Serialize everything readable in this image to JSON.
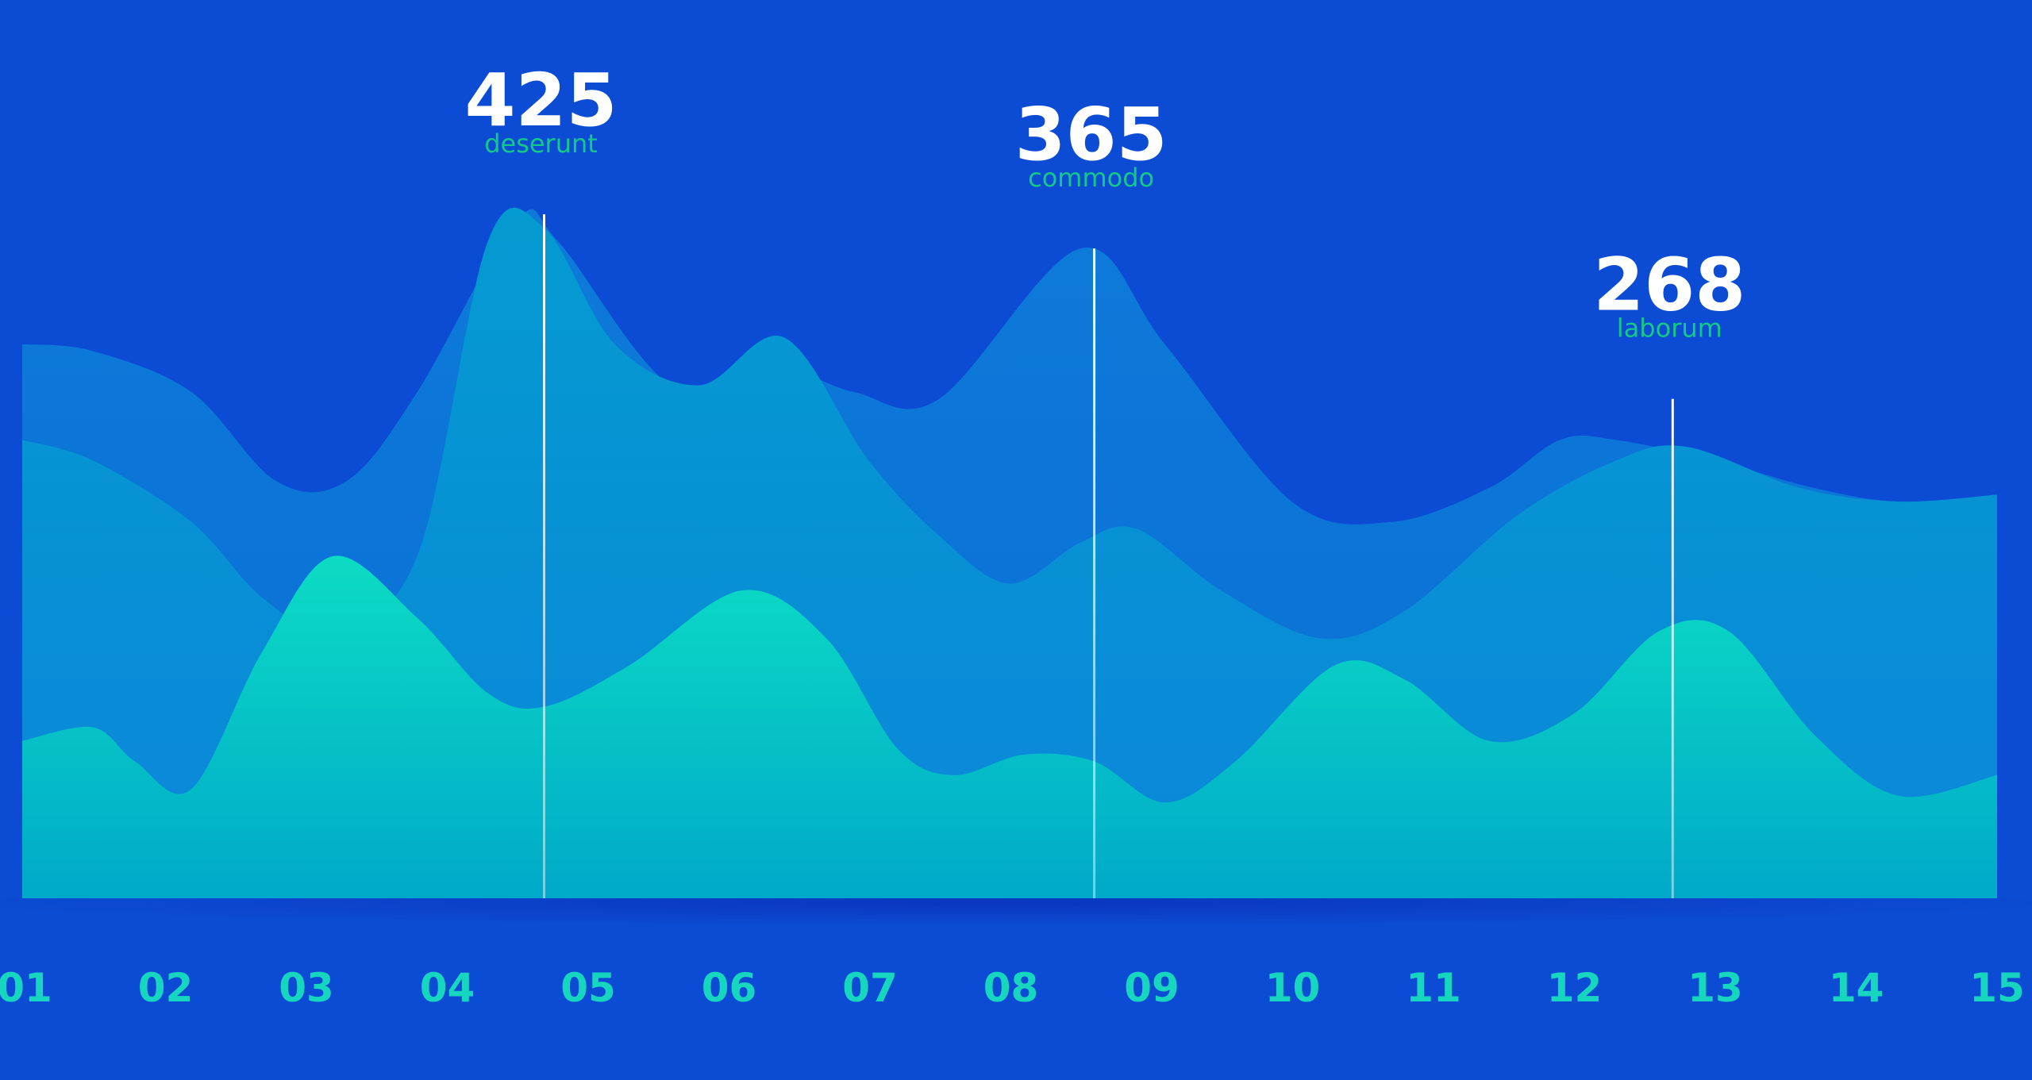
{
  "chart_data": {
    "type": "area",
    "categories": [
      "01",
      "02",
      "03",
      "04",
      "05",
      "06",
      "07",
      "08",
      "09",
      "10",
      "11",
      "12",
      "13",
      "14",
      "15"
    ],
    "x": [
      1,
      15
    ],
    "ylim": [
      0,
      100
    ],
    "grid": false,
    "legend": "none",
    "series": [
      {
        "color": "#0e74d8",
        "points": [
          [
            1,
            81
          ],
          [
            1.5,
            80
          ],
          [
            2.2,
            74
          ],
          [
            2.8,
            61
          ],
          [
            3.3,
            61
          ],
          [
            3.8,
            74
          ],
          [
            4.5,
            99
          ],
          [
            4.8,
            96
          ],
          [
            5.6,
            75
          ],
          [
            6.3,
            78
          ],
          [
            6.9,
            74
          ],
          [
            7.5,
            73
          ],
          [
            8.5,
            95
          ],
          [
            9.1,
            81
          ],
          [
            10.0,
            58
          ],
          [
            10.7,
            55
          ],
          [
            11.4,
            60
          ],
          [
            11.9,
            67
          ],
          [
            12.3,
            67
          ],
          [
            13.0,
            64
          ],
          [
            13.7,
            60
          ],
          [
            14.3,
            58
          ],
          [
            15,
            59
          ]
        ]
      },
      {
        "color": "#0b8fd5",
        "points": [
          [
            1,
            67
          ],
          [
            1.5,
            64
          ],
          [
            2.2,
            55
          ],
          [
            2.7,
            44
          ],
          [
            3.2,
            39
          ],
          [
            3.8,
            50
          ],
          [
            4.3,
            96
          ],
          [
            4.7,
            98
          ],
          [
            5.2,
            81
          ],
          [
            5.8,
            75
          ],
          [
            6.4,
            82
          ],
          [
            7.0,
            64
          ],
          [
            7.5,
            53
          ],
          [
            8.0,
            46
          ],
          [
            8.5,
            52
          ],
          [
            8.9,
            54
          ],
          [
            9.5,
            45
          ],
          [
            10.2,
            38
          ],
          [
            10.8,
            42
          ],
          [
            11.6,
            56
          ],
          [
            12.3,
            64
          ],
          [
            12.8,
            66
          ],
          [
            13.6,
            60
          ],
          [
            14.3,
            58
          ],
          [
            15,
            59
          ]
        ]
      },
      {
        "color": "#02a9c9",
        "points": [
          [
            1,
            23
          ],
          [
            1.5,
            25
          ],
          [
            1.8,
            20
          ],
          [
            2.2,
            16
          ],
          [
            2.7,
            36
          ],
          [
            3.2,
            50
          ],
          [
            3.8,
            41
          ],
          [
            4.3,
            30
          ],
          [
            4.7,
            28
          ],
          [
            5.3,
            34
          ],
          [
            6.1,
            45
          ],
          [
            6.7,
            38
          ],
          [
            7.2,
            22
          ],
          [
            7.6,
            18
          ],
          [
            8.1,
            21
          ],
          [
            8.6,
            20
          ],
          [
            9.1,
            14
          ],
          [
            9.6,
            20
          ],
          [
            10.3,
            34
          ],
          [
            10.8,
            32
          ],
          [
            11.4,
            23
          ],
          [
            12.0,
            27
          ],
          [
            12.6,
            39
          ],
          [
            13.1,
            39
          ],
          [
            13.7,
            24
          ],
          [
            14.3,
            15
          ],
          [
            15,
            18
          ]
        ]
      }
    ],
    "markers": [
      {
        "x": 4.7,
        "value": "425",
        "label": "deserunt",
        "y_top": 100
      },
      {
        "x": 8.6,
        "value": "365",
        "label": "commodo",
        "y_top": 95
      },
      {
        "x": 12.7,
        "value": "268",
        "label": "laborum",
        "y_top": 73
      }
    ]
  }
}
